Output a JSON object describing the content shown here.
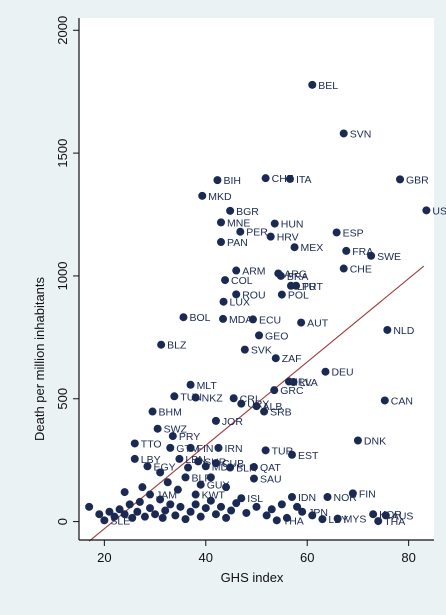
{
  "chart_data": {
    "type": "scatter",
    "title": "",
    "xlabel": "GHS index",
    "ylabel": "Death per million inhabitants",
    "xlim": [
      15,
      85
    ],
    "ylim": [
      -75,
      2050
    ],
    "xticks": [
      20,
      40,
      60,
      80
    ],
    "yticks": [
      0,
      500,
      1000,
      1500,
      2000
    ],
    "grid": false,
    "legend": "none",
    "colors": {
      "marker": "#1b2a52",
      "fit_line": "#a23b3b",
      "background": "#eaf2f3",
      "plot_area": "#ffffff"
    },
    "fit_line": {
      "x": [
        17,
        83
      ],
      "y": [
        -80,
        1040
      ]
    },
    "points": [
      {
        "x": 61.0,
        "y": 1778,
        "label": "BEL"
      },
      {
        "x": 67.2,
        "y": 1580,
        "label": "SVN"
      },
      {
        "x": 78.3,
        "y": 1393,
        "label": "GBR"
      },
      {
        "x": 83.5,
        "y": 1267,
        "label": "USA"
      },
      {
        "x": 51.8,
        "y": 1398,
        "label": "CHE"
      },
      {
        "x": 56.6,
        "y": 1395,
        "label": "ITA"
      },
      {
        "x": 42.3,
        "y": 1390,
        "label": "BIH"
      },
      {
        "x": 39.3,
        "y": 1326,
        "label": "MKD"
      },
      {
        "x": 44.8,
        "y": 1265,
        "label": "BGR"
      },
      {
        "x": 43.0,
        "y": 1218,
        "label": "MNE"
      },
      {
        "x": 53.6,
        "y": 1213,
        "label": "HUN"
      },
      {
        "x": 46.8,
        "y": 1180,
        "label": "PER"
      },
      {
        "x": 52.8,
        "y": 1160,
        "label": "HRV"
      },
      {
        "x": 65.8,
        "y": 1177,
        "label": "ESP"
      },
      {
        "x": 43.0,
        "y": 1138,
        "label": "PAN"
      },
      {
        "x": 57.5,
        "y": 1117,
        "label": "MEX"
      },
      {
        "x": 67.7,
        "y": 1102,
        "label": "FRA"
      },
      {
        "x": 72.6,
        "y": 1082,
        "label": "SWE"
      },
      {
        "x": 46.0,
        "y": 1022,
        "label": "ARM"
      },
      {
        "x": 54.3,
        "y": 1010,
        "label": "ARG"
      },
      {
        "x": 54.8,
        "y": 1000,
        "label": "BRA"
      },
      {
        "x": 67.2,
        "y": 1030,
        "label": "CHE"
      },
      {
        "x": 43.8,
        "y": 983,
        "label": "COL"
      },
      {
        "x": 56.8,
        "y": 960,
        "label": "LTU"
      },
      {
        "x": 57.8,
        "y": 960,
        "label": "PRT"
      },
      {
        "x": 46.0,
        "y": 925,
        "label": "ROU"
      },
      {
        "x": 55.0,
        "y": 924,
        "label": "POL"
      },
      {
        "x": 43.5,
        "y": 895,
        "label": "LUX"
      },
      {
        "x": 35.6,
        "y": 832,
        "label": "BOL"
      },
      {
        "x": 43.4,
        "y": 825,
        "label": "MDA"
      },
      {
        "x": 49.3,
        "y": 823,
        "label": "ECU"
      },
      {
        "x": 58.8,
        "y": 810,
        "label": "AUT"
      },
      {
        "x": 75.8,
        "y": 780,
        "label": "NLD"
      },
      {
        "x": 50.5,
        "y": 758,
        "label": "GEO"
      },
      {
        "x": 31.2,
        "y": 720,
        "label": "BLZ"
      },
      {
        "x": 47.7,
        "y": 700,
        "label": "SVK"
      },
      {
        "x": 53.8,
        "y": 665,
        "label": "ZAF"
      },
      {
        "x": 63.6,
        "y": 610,
        "label": "DEU"
      },
      {
        "x": 37.0,
        "y": 557,
        "label": "MLT"
      },
      {
        "x": 56.4,
        "y": 570,
        "label": "IRL"
      },
      {
        "x": 57.3,
        "y": 568,
        "label": "LVA"
      },
      {
        "x": 53.5,
        "y": 535,
        "label": "GRC"
      },
      {
        "x": 33.8,
        "y": 510,
        "label": "TUN"
      },
      {
        "x": 38.0,
        "y": 505,
        "label": "NKZ"
      },
      {
        "x": 45.5,
        "y": 502,
        "label": "CRI"
      },
      {
        "x": 75.3,
        "y": 493,
        "label": "CAN"
      },
      {
        "x": 47.0,
        "y": 480,
        "label": "URY"
      },
      {
        "x": 50.0,
        "y": 470,
        "label": "ALB"
      },
      {
        "x": 51.5,
        "y": 448,
        "label": "SRB"
      },
      {
        "x": 29.5,
        "y": 448,
        "label": "BHM"
      },
      {
        "x": 42.0,
        "y": 410,
        "label": "JOR"
      },
      {
        "x": 30.5,
        "y": 378,
        "label": "SWZ"
      },
      {
        "x": 33.5,
        "y": 348,
        "label": "PRY"
      },
      {
        "x": 70.0,
        "y": 330,
        "label": "DNK"
      },
      {
        "x": 26.0,
        "y": 318,
        "label": "TTO"
      },
      {
        "x": 33.0,
        "y": 300,
        "label": "GTM"
      },
      {
        "x": 37.0,
        "y": 300,
        "label": "FIN"
      },
      {
        "x": 42.5,
        "y": 300,
        "label": "IRN"
      },
      {
        "x": 51.8,
        "y": 290,
        "label": "TUR"
      },
      {
        "x": 57.0,
        "y": 272,
        "label": "EST"
      },
      {
        "x": 26.0,
        "y": 255,
        "label": "LBY"
      },
      {
        "x": 34.8,
        "y": 255,
        "label": "LBN"
      },
      {
        "x": 38.5,
        "y": 245,
        "label": "SUR"
      },
      {
        "x": 42.0,
        "y": 238,
        "label": "CUB"
      },
      {
        "x": 28.5,
        "y": 225,
        "label": "EGY"
      },
      {
        "x": 40.0,
        "y": 225,
        "label": "MDV"
      },
      {
        "x": 44.8,
        "y": 220,
        "label": "BLR"
      },
      {
        "x": 49.5,
        "y": 222,
        "label": "QAT"
      },
      {
        "x": 36.0,
        "y": 180,
        "label": "BLR"
      },
      {
        "x": 49.5,
        "y": 175,
        "label": "SAU"
      },
      {
        "x": 39.0,
        "y": 150,
        "label": "GUY"
      },
      {
        "x": 69.0,
        "y": 115,
        "label": "FIN"
      },
      {
        "x": 29.0,
        "y": 110,
        "label": "JAM"
      },
      {
        "x": 38.0,
        "y": 110,
        "label": "KWT"
      },
      {
        "x": 47.0,
        "y": 95,
        "label": "ISL"
      },
      {
        "x": 57.0,
        "y": 100,
        "label": "IDN"
      },
      {
        "x": 64.0,
        "y": 100,
        "label": "NOR"
      },
      {
        "x": 59.0,
        "y": 40,
        "label": "JPN"
      },
      {
        "x": 73.0,
        "y": 30,
        "label": "KOR"
      },
      {
        "x": 75.5,
        "y": 25,
        "label": "AUS"
      },
      {
        "x": 66.0,
        "y": 12,
        "label": "MYS"
      },
      {
        "x": 63.0,
        "y": 10,
        "label": "LBY"
      },
      {
        "x": 74.0,
        "y": 2,
        "label": "THA"
      },
      {
        "x": 54.0,
        "y": 5,
        "label": "THA"
      },
      {
        "x": 20.0,
        "y": 5,
        "label": "SLE"
      },
      {
        "x": 17.0,
        "y": 60,
        "label": ""
      },
      {
        "x": 19.0,
        "y": 30,
        "label": ""
      },
      {
        "x": 21.0,
        "y": 40,
        "label": ""
      },
      {
        "x": 22.0,
        "y": 20,
        "label": ""
      },
      {
        "x": 23.0,
        "y": 50,
        "label": ""
      },
      {
        "x": 24.0,
        "y": 30,
        "label": ""
      },
      {
        "x": 25.0,
        "y": 70,
        "label": ""
      },
      {
        "x": 25.5,
        "y": 15,
        "label": ""
      },
      {
        "x": 26.5,
        "y": 40,
        "label": ""
      },
      {
        "x": 27.0,
        "y": 80,
        "label": ""
      },
      {
        "x": 28.0,
        "y": 20,
        "label": ""
      },
      {
        "x": 29.0,
        "y": 55,
        "label": ""
      },
      {
        "x": 30.0,
        "y": 30,
        "label": ""
      },
      {
        "x": 31.0,
        "y": 90,
        "label": ""
      },
      {
        "x": 31.5,
        "y": 15,
        "label": ""
      },
      {
        "x": 32.0,
        "y": 45,
        "label": ""
      },
      {
        "x": 33.0,
        "y": 70,
        "label": ""
      },
      {
        "x": 34.0,
        "y": 25,
        "label": ""
      },
      {
        "x": 35.0,
        "y": 60,
        "label": ""
      },
      {
        "x": 36.0,
        "y": 10,
        "label": ""
      },
      {
        "x": 37.0,
        "y": 40,
        "label": ""
      },
      {
        "x": 38.0,
        "y": 70,
        "label": ""
      },
      {
        "x": 39.0,
        "y": 20,
        "label": ""
      },
      {
        "x": 40.0,
        "y": 55,
        "label": ""
      },
      {
        "x": 41.0,
        "y": 85,
        "label": ""
      },
      {
        "x": 42.0,
        "y": 30,
        "label": ""
      },
      {
        "x": 43.0,
        "y": 60,
        "label": ""
      },
      {
        "x": 44.0,
        "y": 15,
        "label": ""
      },
      {
        "x": 45.0,
        "y": 45,
        "label": ""
      },
      {
        "x": 46.0,
        "y": 75,
        "label": ""
      },
      {
        "x": 48.0,
        "y": 35,
        "label": ""
      },
      {
        "x": 50.0,
        "y": 60,
        "label": ""
      },
      {
        "x": 52.0,
        "y": 25,
        "label": ""
      },
      {
        "x": 53.0,
        "y": 50,
        "label": ""
      },
      {
        "x": 55.0,
        "y": 70,
        "label": ""
      },
      {
        "x": 56.0,
        "y": 15,
        "label": ""
      },
      {
        "x": 58.0,
        "y": 60,
        "label": ""
      },
      {
        "x": 61.0,
        "y": 25,
        "label": ""
      },
      {
        "x": 24.0,
        "y": 120,
        "label": ""
      },
      {
        "x": 27.5,
        "y": 140,
        "label": ""
      },
      {
        "x": 32.5,
        "y": 160,
        "label": ""
      },
      {
        "x": 34.5,
        "y": 130,
        "label": ""
      },
      {
        "x": 41.0,
        "y": 180,
        "label": ""
      },
      {
        "x": 44.0,
        "y": 140,
        "label": ""
      },
      {
        "x": 31.0,
        "y": 200,
        "label": ""
      },
      {
        "x": 36.5,
        "y": 220,
        "label": ""
      }
    ]
  }
}
